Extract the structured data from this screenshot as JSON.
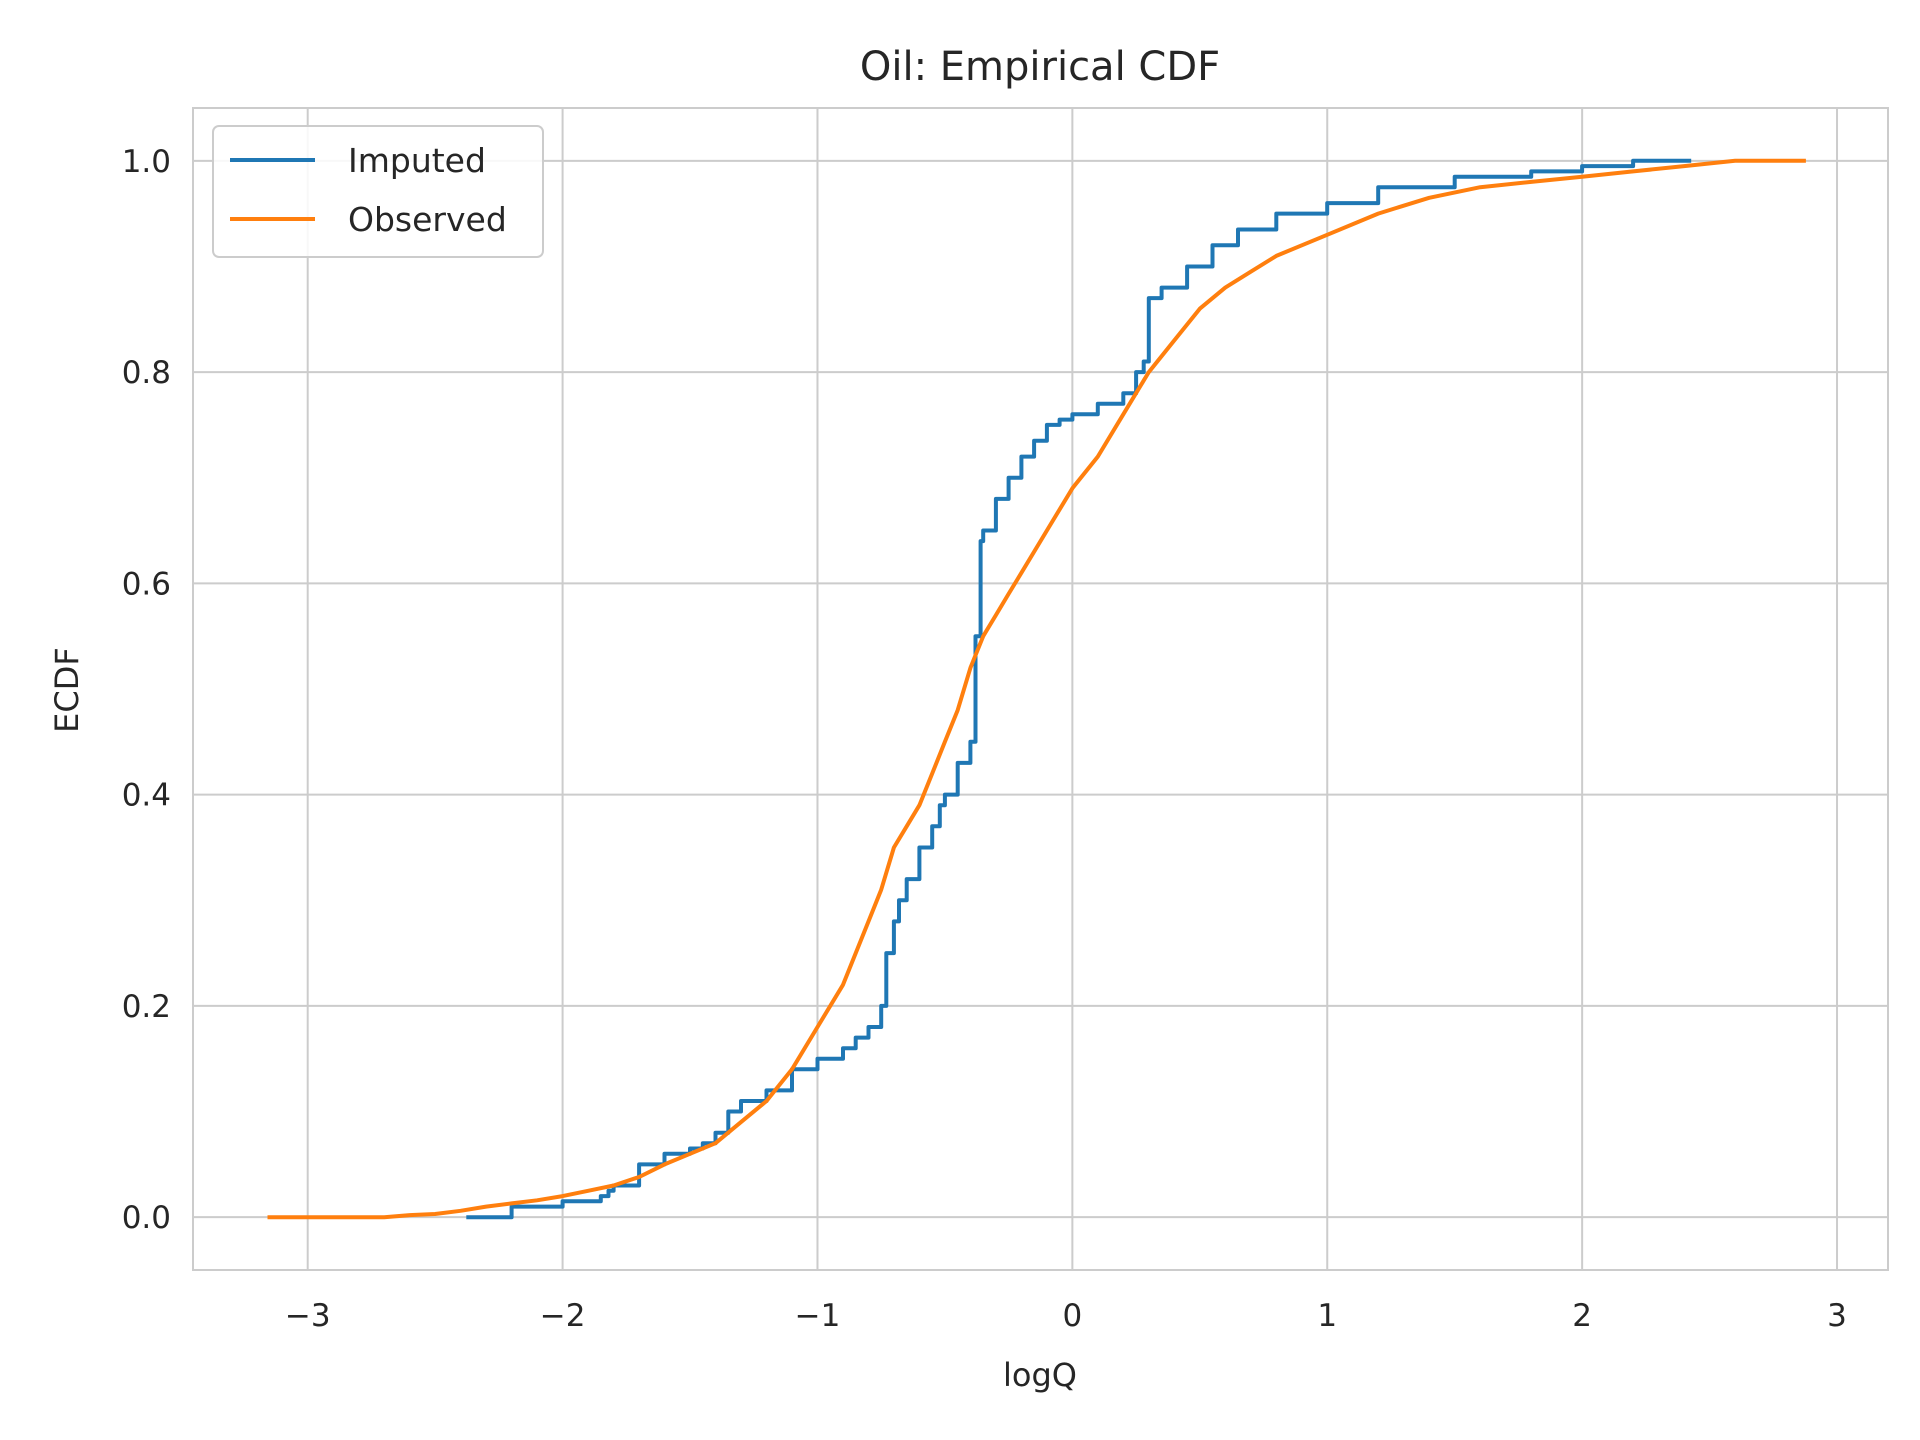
{
  "chart_data": {
    "type": "line",
    "title": "Oil: Empirical CDF",
    "xlabel": "logQ",
    "ylabel": "ECDF",
    "xlim": [
      -3.45,
      3.2
    ],
    "ylim": [
      -0.05,
      1.05
    ],
    "xticks": [
      -3,
      -2,
      -1,
      0,
      1,
      2,
      3
    ],
    "xtick_labels": [
      "−3",
      "−2",
      "−1",
      "0",
      "1",
      "2",
      "3"
    ],
    "yticks": [
      0.0,
      0.2,
      0.4,
      0.6,
      0.8,
      1.0
    ],
    "ytick_labels": [
      "0.0",
      "0.2",
      "0.4",
      "0.6",
      "0.8",
      "1.0"
    ],
    "grid": true,
    "legend_position": "top-left",
    "series": [
      {
        "name": "Imputed",
        "color": "#1f77b4",
        "step": true,
        "x": [
          -2.37,
          -2.2,
          -2.0,
          -1.85,
          -1.82,
          -1.8,
          -1.7,
          -1.6,
          -1.5,
          -1.45,
          -1.4,
          -1.35,
          -1.3,
          -1.2,
          -1.1,
          -1.0,
          -0.9,
          -0.85,
          -0.8,
          -0.75,
          -0.73,
          -0.73,
          -0.7,
          -0.68,
          -0.65,
          -0.6,
          -0.55,
          -0.52,
          -0.5,
          -0.45,
          -0.4,
          -0.38,
          -0.38,
          -0.36,
          -0.36,
          -0.35,
          -0.3,
          -0.25,
          -0.2,
          -0.15,
          -0.1,
          -0.05,
          0.0,
          0.1,
          0.2,
          0.25,
          0.28,
          0.3,
          0.3,
          0.35,
          0.45,
          0.55,
          0.65,
          0.8,
          1.0,
          1.2,
          1.5,
          1.8,
          2.0,
          2.2,
          2.42
        ],
        "y": [
          0.0,
          0.01,
          0.015,
          0.02,
          0.025,
          0.03,
          0.05,
          0.06,
          0.065,
          0.07,
          0.08,
          0.1,
          0.11,
          0.12,
          0.14,
          0.15,
          0.16,
          0.17,
          0.18,
          0.2,
          0.2,
          0.25,
          0.28,
          0.3,
          0.32,
          0.35,
          0.37,
          0.39,
          0.4,
          0.43,
          0.45,
          0.5,
          0.55,
          0.58,
          0.64,
          0.65,
          0.68,
          0.7,
          0.72,
          0.735,
          0.75,
          0.755,
          0.76,
          0.77,
          0.78,
          0.8,
          0.81,
          0.82,
          0.87,
          0.88,
          0.9,
          0.92,
          0.935,
          0.95,
          0.96,
          0.975,
          0.985,
          0.99,
          0.995,
          1.0,
          1.0
        ]
      },
      {
        "name": "Observed",
        "color": "#ff7f0e",
        "step": false,
        "x": [
          -3.15,
          -2.7,
          -2.6,
          -2.5,
          -2.4,
          -2.3,
          -2.2,
          -2.1,
          -2.0,
          -1.9,
          -1.8,
          -1.7,
          -1.6,
          -1.5,
          -1.4,
          -1.3,
          -1.2,
          -1.1,
          -1.0,
          -0.9,
          -0.8,
          -0.75,
          -0.7,
          -0.65,
          -0.6,
          -0.55,
          -0.5,
          -0.45,
          -0.4,
          -0.35,
          -0.3,
          -0.25,
          -0.2,
          -0.1,
          0.0,
          0.1,
          0.2,
          0.3,
          0.4,
          0.5,
          0.6,
          0.7,
          0.8,
          0.9,
          1.0,
          1.2,
          1.4,
          1.6,
          1.8,
          2.0,
          2.2,
          2.4,
          2.6,
          2.87
        ],
        "y": [
          0.0,
          0.0,
          0.002,
          0.003,
          0.006,
          0.01,
          0.013,
          0.016,
          0.02,
          0.025,
          0.03,
          0.038,
          0.05,
          0.06,
          0.07,
          0.09,
          0.11,
          0.14,
          0.18,
          0.22,
          0.28,
          0.31,
          0.35,
          0.37,
          0.39,
          0.42,
          0.45,
          0.48,
          0.52,
          0.55,
          0.57,
          0.59,
          0.61,
          0.65,
          0.69,
          0.72,
          0.76,
          0.8,
          0.83,
          0.86,
          0.88,
          0.895,
          0.91,
          0.92,
          0.93,
          0.95,
          0.965,
          0.975,
          0.98,
          0.985,
          0.99,
          0.995,
          1.0,
          1.0
        ]
      }
    ]
  }
}
